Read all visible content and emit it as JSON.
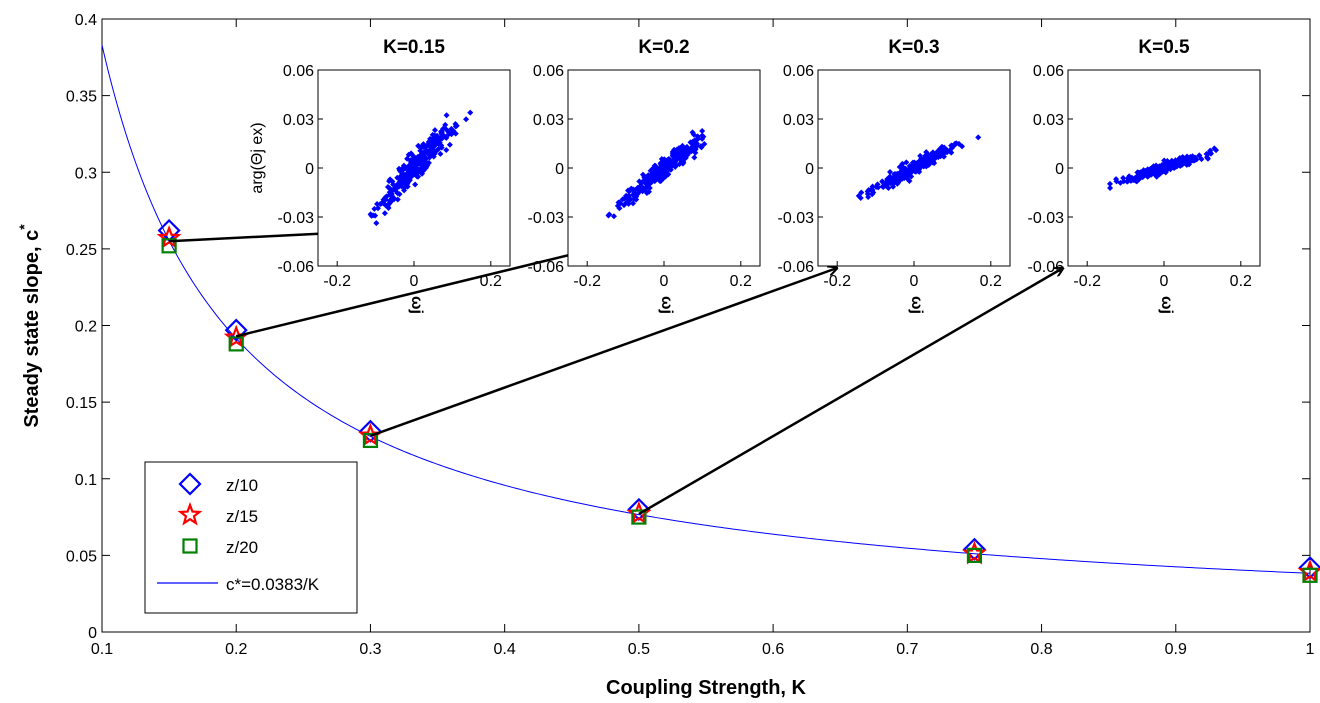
{
  "chart_data": [
    {
      "type": "scatter",
      "xlabel": "Coupling Strength, K",
      "ylabel": "Steady state slope, c",
      "ylabel_superscript": "*",
      "xlim": [
        0.1,
        1.0
      ],
      "ylim": [
        0,
        0.4
      ],
      "xticks": [
        "0.1",
        "0.2",
        "0.3",
        "0.4",
        "0.5",
        "0.6",
        "0.7",
        "0.8",
        "0.9",
        "1"
      ],
      "yticks": [
        "0",
        "0.05",
        "0.1",
        "0.15",
        "0.2",
        "0.25",
        "0.3",
        "0.35",
        "0.4"
      ],
      "grid": false,
      "legend_position": "bottom-left",
      "series": [
        {
          "name": "z/10",
          "marker": "diamond",
          "color": "#0000ff",
          "x": [
            0.15,
            0.2,
            0.3,
            0.5,
            0.75,
            1.0
          ],
          "y": [
            0.262,
            0.197,
            0.131,
            0.08,
            0.054,
            0.042
          ]
        },
        {
          "name": "z/15",
          "marker": "star",
          "color": "#ff0000",
          "x": [
            0.15,
            0.2,
            0.3,
            0.5,
            0.75,
            1.0
          ],
          "y": [
            0.257,
            0.192,
            0.128,
            0.077,
            0.051,
            0.039
          ]
        },
        {
          "name": "z/20",
          "marker": "square",
          "color": "#008000",
          "x": [
            0.15,
            0.2,
            0.3,
            0.5,
            0.75,
            1.0
          ],
          "y": [
            0.252,
            0.188,
            0.125,
            0.075,
            0.05,
            0.037
          ]
        }
      ],
      "fit": {
        "name": "c*=0.0383/K",
        "color": "#0000ff",
        "coefficient": 0.0383,
        "x_range": [
          0.1,
          1.0
        ]
      },
      "legend": [
        {
          "label": "z/10"
        },
        {
          "label": "z/15"
        },
        {
          "label": "z/20"
        },
        {
          "label": "c*=0.0383/K"
        }
      ]
    },
    {
      "type": "scatter",
      "title": "K=0.15",
      "ylabel": "arg(Θj ex)",
      "xlabel": "ωj",
      "xlim": [
        -0.25,
        0.25
      ],
      "ylim": [
        -0.06,
        0.06
      ],
      "xticks": [
        "-0.2",
        "0",
        "0.2"
      ],
      "yticks": [
        "0.06",
        "0.03",
        "0",
        "-0.03",
        "-0.06"
      ],
      "color": "#0000ff",
      "trend": {
        "slope": 0.26,
        "spread": 0.006,
        "x_range": [
          -0.21,
          0.23
        ],
        "count": 300
      }
    },
    {
      "type": "scatter",
      "title": "K=0.2",
      "xlabel": "ωj",
      "xlim": [
        -0.25,
        0.25
      ],
      "ylim": [
        -0.06,
        0.06
      ],
      "xticks": [
        "-0.2",
        "0",
        "0.2"
      ],
      "yticks": [
        "0.06",
        "0.03",
        "0",
        "-0.03",
        "-0.06"
      ],
      "color": "#0000ff",
      "trend": {
        "slope": 0.195,
        "spread": 0.004,
        "x_range": [
          -0.18,
          0.23
        ],
        "count": 300
      }
    },
    {
      "type": "scatter",
      "title": "K=0.3",
      "xlabel": "ωj",
      "xlim": [
        -0.25,
        0.25
      ],
      "ylim": [
        -0.06,
        0.06
      ],
      "xticks": [
        "-0.2",
        "0",
        "0.2"
      ],
      "yticks": [
        "0.06",
        "0.03",
        "0",
        "-0.03",
        "-0.06"
      ],
      "color": "#0000ff",
      "trend": {
        "slope": 0.13,
        "spread": 0.003,
        "x_range": [
          -0.19,
          0.23
        ],
        "count": 300
      }
    },
    {
      "type": "scatter",
      "title": "K=0.5",
      "xlabel": "ωj",
      "xlim": [
        -0.25,
        0.25
      ],
      "ylim": [
        -0.06,
        0.06
      ],
      "xticks": [
        "-0.2",
        "0",
        "0.2"
      ],
      "yticks": [
        "0.06",
        "0.03",
        "0",
        "-0.03",
        "-0.06"
      ],
      "color": "#0000ff",
      "trend": {
        "slope": 0.075,
        "spread": 0.002,
        "x_range": [
          -0.19,
          0.23
        ],
        "count": 300
      }
    }
  ],
  "annotations": {
    "arrows": [
      {
        "from_chart_x": 0.15,
        "from_chart_y": 0.255,
        "target": "K=0.15"
      },
      {
        "from_chart_x": 0.2,
        "from_chart_y": 0.193,
        "target": "K=0.2"
      },
      {
        "from_chart_x": 0.3,
        "from_chart_y": 0.128,
        "target": "K=0.3"
      },
      {
        "from_chart_x": 0.5,
        "from_chart_y": 0.077,
        "target": "K=0.5"
      }
    ]
  }
}
